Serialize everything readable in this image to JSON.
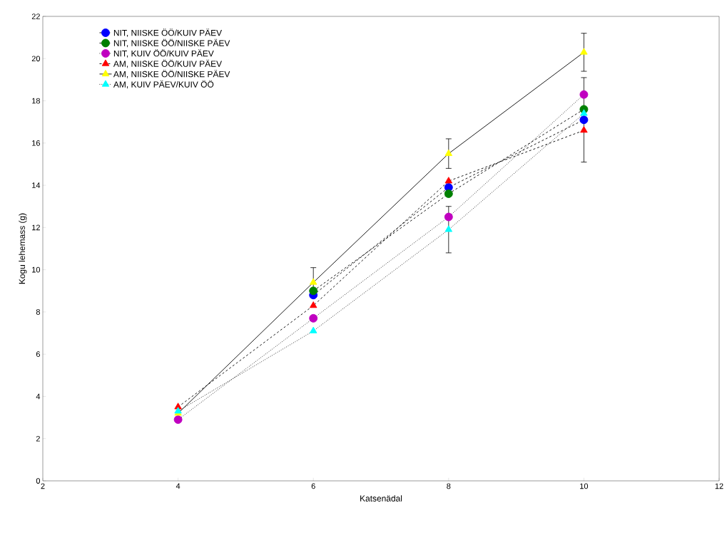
{
  "chart_data": {
    "type": "line",
    "xlabel": "Katsenädal",
    "ylabel": "Kogu lehemass (g)",
    "x": [
      4,
      6,
      8,
      10
    ],
    "xlim": [
      2,
      12
    ],
    "xticks": [
      2,
      4,
      6,
      8,
      10,
      12
    ],
    "ylim": [
      0,
      22
    ],
    "yticks": [
      0,
      2,
      4,
      6,
      8,
      10,
      12,
      14,
      16,
      18,
      20,
      22
    ],
    "grid": false,
    "legend": "top left",
    "series": [
      {
        "name": "NIT, NIISKE ÖÖ/KUIV PÄEV",
        "color": "#0000ff",
        "marker": "circle",
        "line_style": "dashed",
        "values": [
          null,
          8.8,
          13.9,
          17.1
        ],
        "errors": [
          null,
          null,
          null,
          2.0
        ]
      },
      {
        "name": "NIT, NIISKE ÖÖ/NIISKE PÄEV",
        "color": "#008000",
        "marker": "circle",
        "line_style": "dashed",
        "values": [
          null,
          9.0,
          13.6,
          17.6
        ]
      },
      {
        "name": "NIT, KUIV ÖÖ/KUIV PÄEV",
        "color": "#c000c0",
        "marker": "circle",
        "line_style": "dotted",
        "values": [
          2.9,
          7.7,
          12.5,
          18.3
        ]
      },
      {
        "name": "AM, NIISKE ÖÖ/KUIV PÄEV",
        "color": "#ff0000",
        "marker": "triangle",
        "line_style": "dashed",
        "values": [
          3.5,
          8.3,
          14.2,
          16.6
        ]
      },
      {
        "name": "AM, NIISKE ÖÖ/NIISKE PÄEV",
        "color": "#ffff00",
        "marker": "triangle",
        "line_style": "solid",
        "values": [
          3.2,
          9.4,
          15.5,
          20.3
        ],
        "errors": [
          null,
          0.7,
          0.7,
          0.9
        ]
      },
      {
        "name": "AM, KUIV PÄEV/KUIV ÖÖ",
        "color": "#00ffff",
        "marker": "triangle",
        "line_style": "dotted",
        "values": [
          3.3,
          7.1,
          11.9,
          17.4
        ],
        "errors": [
          null,
          null,
          1.1,
          null
        ]
      }
    ]
  }
}
